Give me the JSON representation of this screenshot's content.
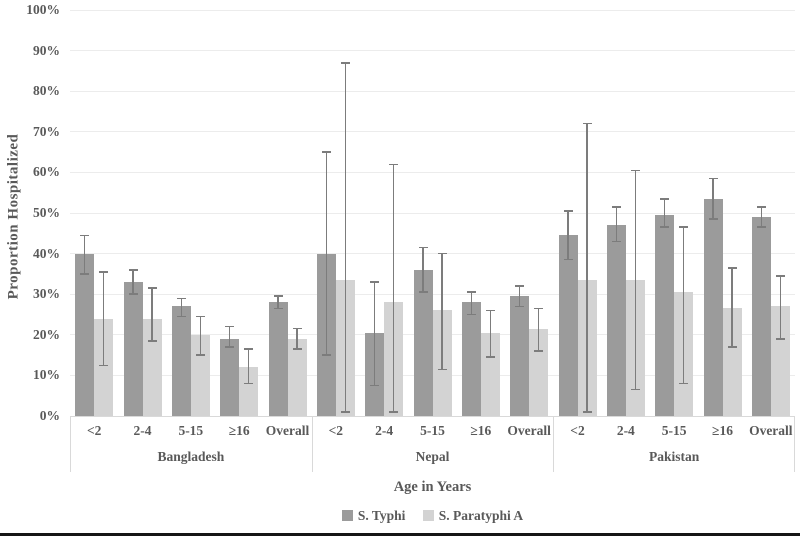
{
  "figure": {
    "kind": "grouped bar chart with 95% CI error bars",
    "background": "#ffffff",
    "text_color": "#595959",
    "gridline_color": "#ececec",
    "axis_line_color": "#d9d9d9",
    "error_bar_color": "#7c7c7c",
    "bottom_border_color": "#161616"
  },
  "chart_data": {
    "type": "bar",
    "title": "",
    "ylabel": "Proportion Hospitalized",
    "xlabel": "Age in Years",
    "y_axis": {
      "min": 0,
      "max": 100,
      "step": 10,
      "unit": "%",
      "grid": true
    },
    "y_tick_labels": [
      "0%",
      "10%",
      "20%",
      "30%",
      "40%",
      "50%",
      "60%",
      "70%",
      "80%",
      "90%",
      "100%"
    ],
    "categories": [
      "<2",
      "2-4",
      "5-15",
      "≥16",
      "Overall"
    ],
    "groups": [
      "Bangladesh",
      "Nepal",
      "Pakistan"
    ],
    "legend_position": "bottom",
    "error_bars": true,
    "series": [
      {
        "name": "S. Typhi",
        "color": "#9b9b9b",
        "data": {
          "Bangladesh": [
            {
              "value": 40,
              "ci_low": 35,
              "ci_high": 44.5
            },
            {
              "value": 33,
              "ci_low": 30,
              "ci_high": 36
            },
            {
              "value": 27,
              "ci_low": 24.5,
              "ci_high": 29
            },
            {
              "value": 19,
              "ci_low": 17,
              "ci_high": 22
            },
            {
              "value": 28,
              "ci_low": 26.5,
              "ci_high": 29.5
            }
          ],
          "Nepal": [
            {
              "value": 40,
              "ci_low": 15,
              "ci_high": 65
            },
            {
              "value": 20.5,
              "ci_low": 7.5,
              "ci_high": 33
            },
            {
              "value": 36,
              "ci_low": 30.5,
              "ci_high": 41.5
            },
            {
              "value": 28,
              "ci_low": 25,
              "ci_high": 30.5
            },
            {
              "value": 29.5,
              "ci_low": 27,
              "ci_high": 32
            }
          ],
          "Pakistan": [
            {
              "value": 44.5,
              "ci_low": 38.5,
              "ci_high": 50.5
            },
            {
              "value": 47,
              "ci_low": 43,
              "ci_high": 51.5
            },
            {
              "value": 49.5,
              "ci_low": 46.5,
              "ci_high": 53.5
            },
            {
              "value": 53.5,
              "ci_low": 48.5,
              "ci_high": 58.5
            },
            {
              "value": 49,
              "ci_low": 46.5,
              "ci_high": 51.5
            }
          ]
        }
      },
      {
        "name": "S. Paratyphi A",
        "color": "#d3d3d3",
        "data": {
          "Bangladesh": [
            {
              "value": 24,
              "ci_low": 12.5,
              "ci_high": 35.5
            },
            {
              "value": 24,
              "ci_low": 18.5,
              "ci_high": 31.5
            },
            {
              "value": 20,
              "ci_low": 15,
              "ci_high": 24.5
            },
            {
              "value": 12,
              "ci_low": 8,
              "ci_high": 16.5
            },
            {
              "value": 19,
              "ci_low": 16.5,
              "ci_high": 21.5
            }
          ],
          "Nepal": [
            {
              "value": 33.5,
              "ci_low": 1,
              "ci_high": 87
            },
            {
              "value": 28,
              "ci_low": 1,
              "ci_high": 62
            },
            {
              "value": 26,
              "ci_low": 11.5,
              "ci_high": 40
            },
            {
              "value": 20.5,
              "ci_low": 14.5,
              "ci_high": 26
            },
            {
              "value": 21.5,
              "ci_low": 16,
              "ci_high": 26.5
            }
          ],
          "Pakistan": [
            {
              "value": 33.5,
              "ci_low": 1,
              "ci_high": 72
            },
            {
              "value": 33.5,
              "ci_low": 6.5,
              "ci_high": 60.5
            },
            {
              "value": 30.5,
              "ci_low": 8,
              "ci_high": 46.5
            },
            {
              "value": 26.5,
              "ci_low": 17,
              "ci_high": 36.5
            },
            {
              "value": 27,
              "ci_low": 19,
              "ci_high": 34.5
            }
          ]
        }
      }
    ]
  }
}
